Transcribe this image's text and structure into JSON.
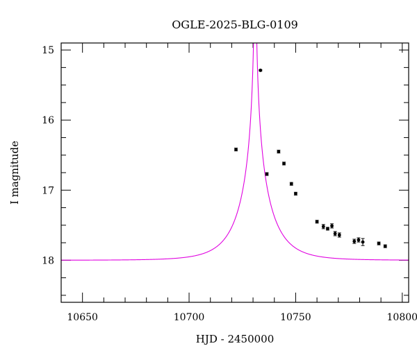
{
  "chart_data": {
    "type": "scatter",
    "title": "OGLE-2025-BLG-0109",
    "xlabel": "HJD - 2450000",
    "ylabel": "I magnitude",
    "xlim": [
      10640,
      10803
    ],
    "ylim": [
      18.6,
      14.9
    ],
    "y_inverted": true,
    "grid": false,
    "x_major_ticks": [
      10650,
      10700,
      10750,
      10800
    ],
    "x_tick_labels": [
      "10650",
      "10700",
      "10750",
      "10800"
    ],
    "x_minor_step": 10,
    "y_major_ticks": [
      15,
      16,
      17,
      18
    ],
    "y_tick_labels": [
      "15",
      "16",
      "17",
      "18"
    ],
    "y_minor_step": 0.25,
    "model_color": "#e000e0",
    "point_color": "#000000",
    "model": {
      "name": "",
      "type": "paczynski",
      "t0": 10731.0,
      "u0": 0.0037,
      "tE": 14.5,
      "I_baseline": 18.0,
      "fs": 0.93
    },
    "series": [
      {
        "name": "",
        "x": [
          10722,
          10733.5,
          10736.5,
          10742,
          10744.5,
          10748,
          10750,
          10760,
          10763,
          10765,
          10767,
          10768.5,
          10770.5,
          10777.5,
          10779.5,
          10781.5,
          10789,
          10792
        ],
        "y": [
          16.42,
          15.29,
          16.77,
          16.45,
          16.62,
          16.91,
          17.05,
          17.45,
          17.52,
          17.55,
          17.51,
          17.62,
          17.64,
          17.73,
          17.71,
          17.74,
          17.76,
          17.8
        ],
        "err": [
          0.02,
          0.01,
          0.02,
          0.02,
          0.02,
          0.02,
          0.02,
          0.02,
          0.03,
          0.02,
          0.03,
          0.03,
          0.03,
          0.03,
          0.03,
          0.05,
          0.02,
          0.02
        ]
      }
    ]
  }
}
